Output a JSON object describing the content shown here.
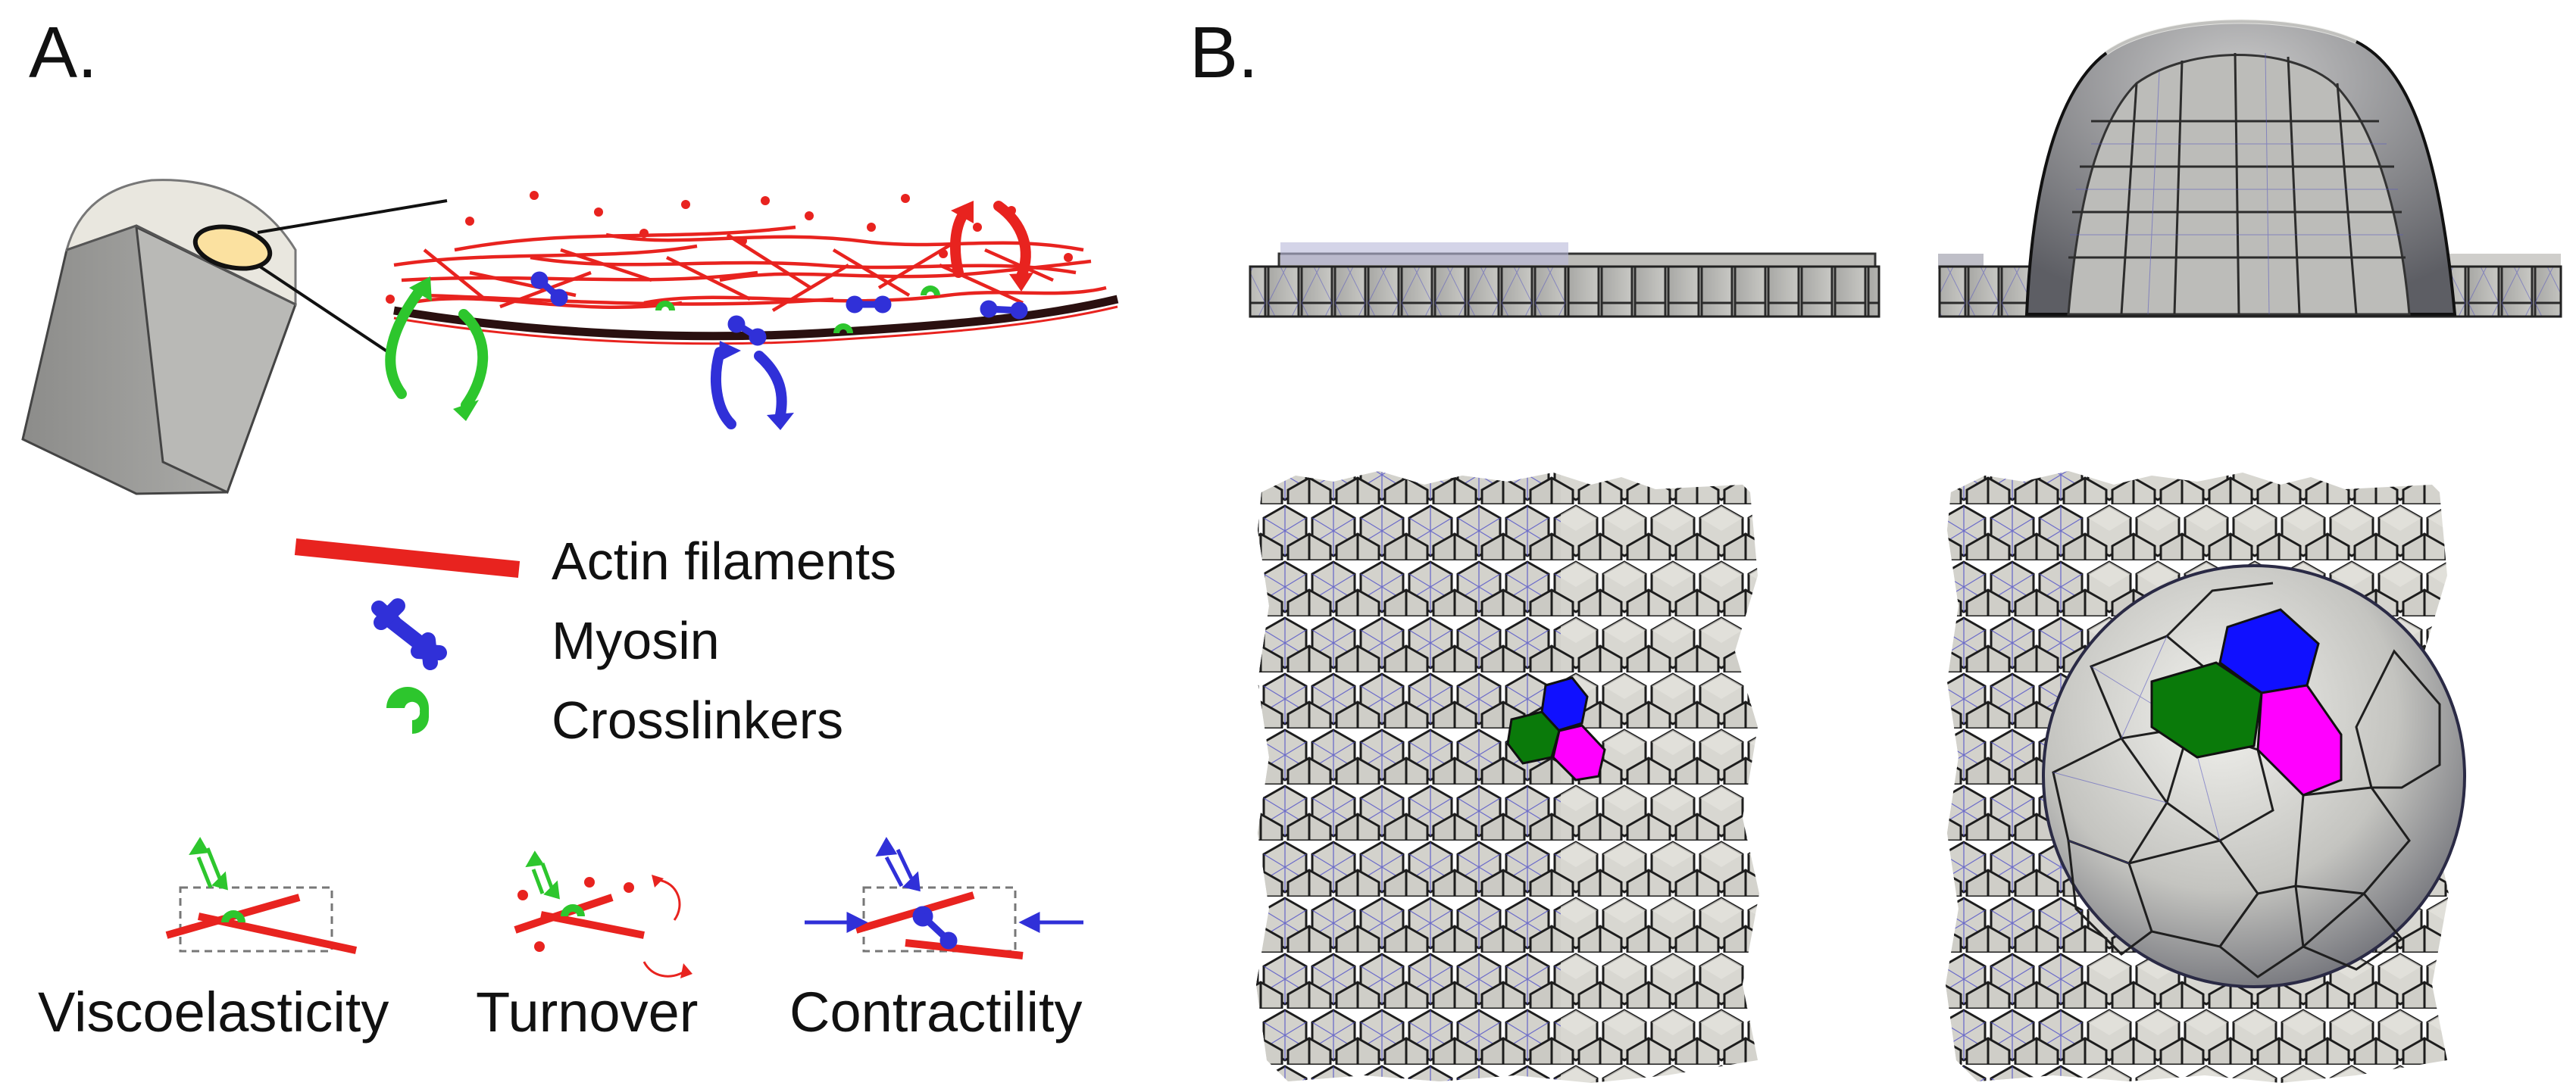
{
  "panel_a": {
    "label": "A.",
    "legend": {
      "actin": "Actin filaments",
      "myosin": "Myosin",
      "crosslinkers": "Crosslinkers"
    },
    "properties": {
      "viscoelasticity": "Viscoelasticity",
      "turnover": "Turnover",
      "contractility": "Contractility"
    }
  },
  "panel_b": {
    "label": "B."
  },
  "colors": {
    "actin": "#e8231f",
    "myosin": "#3030d8",
    "crosslinker": "#2dc62d",
    "cell_fill": "#dad9d4",
    "cell_edge": "#222222",
    "highlight_blue": "#1010ff",
    "highlight_green": "#0a7a0a",
    "highlight_magenta": "#ff00ff"
  }
}
